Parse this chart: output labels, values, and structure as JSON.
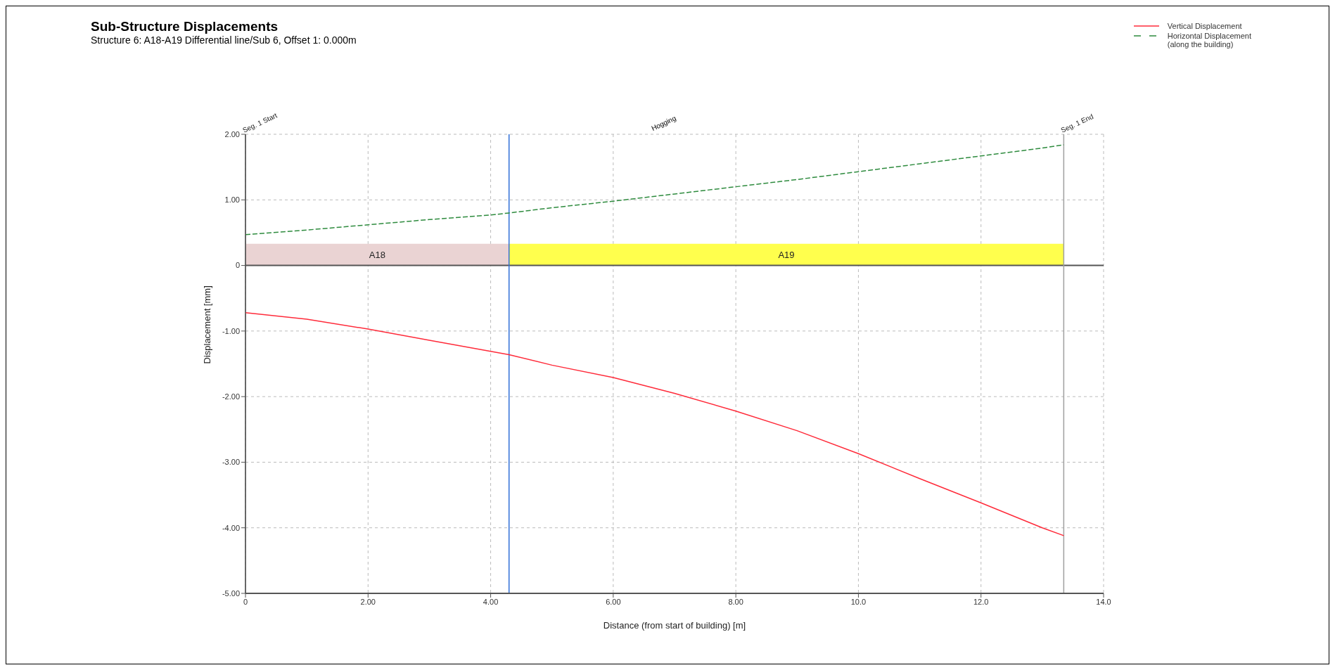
{
  "chart_data": {
    "type": "line",
    "title": "Sub-Structure Displacements",
    "subtitle": "Structure 6: A18-A19 Differential line/Sub 6, Offset 1: 0.000m",
    "xlabel": "Distance (from start of building) [m]",
    "ylabel": "Displacement [mm]",
    "xlim": [
      0,
      14
    ],
    "ylim": [
      -5,
      2
    ],
    "xticks": [
      0,
      {
        "value": 2,
        "label": "2.00"
      },
      {
        "value": 4,
        "label": "4.00"
      },
      {
        "value": 6,
        "label": "6.00"
      },
      {
        "value": 8,
        "label": "8.00"
      },
      {
        "value": 10,
        "label": "10.0"
      },
      {
        "value": 12,
        "label": "12.0"
      },
      {
        "value": 14,
        "label": "14.0"
      }
    ],
    "yticks": [
      {
        "value": 2,
        "label": "2.00"
      },
      {
        "value": 1,
        "label": "1.00"
      },
      0,
      {
        "value": -1,
        "label": "-1.00"
      },
      {
        "value": -2,
        "label": "-2.00"
      },
      {
        "value": -3,
        "label": "-3.00"
      },
      {
        "value": -4,
        "label": "-4.00"
      },
      {
        "value": -5,
        "label": "-5.00"
      }
    ],
    "x": [
      0,
      1,
      2,
      3,
      4,
      4.3,
      5,
      6,
      7,
      8,
      9,
      10,
      11,
      12,
      13,
      13.35
    ],
    "series": [
      {
        "name": "Vertical Displacement",
        "color": "#ff2b3a",
        "line_style": "solid",
        "values": [
          -0.72,
          -0.82,
          -0.97,
          -1.14,
          -1.31,
          -1.36,
          -1.52,
          -1.71,
          -1.95,
          -2.22,
          -2.52,
          -2.87,
          -3.25,
          -3.62,
          -4.0,
          -4.12
        ]
      },
      {
        "name": "Horizontal Displacement\n(along the building)",
        "color": "#2e8b3e",
        "line_style": "dashed",
        "values": [
          0.47,
          0.54,
          0.62,
          0.7,
          0.77,
          0.8,
          0.88,
          0.98,
          1.09,
          1.2,
          1.31,
          1.43,
          1.55,
          1.67,
          1.79,
          1.84
        ]
      }
    ],
    "bands": [
      {
        "axis": "x",
        "from": 0,
        "to": 4.3,
        "label": "A18",
        "color": "#ead3d3"
      },
      {
        "axis": "x",
        "from": 4.3,
        "to": 13.35,
        "label": "A19",
        "color": "#ffff4d"
      }
    ],
    "ref_lines": [
      {
        "axis": "x",
        "value": 0,
        "label": "Seg. 1 Start",
        "color": "#555555"
      },
      {
        "axis": "x",
        "value": 4.3,
        "label": null,
        "color": "#2f6fd8"
      },
      {
        "axis": "x",
        "value": 13.35,
        "label": "Seg. 1 End",
        "color": "#a0a0a0"
      }
    ],
    "annotations": [
      "Hogging"
    ],
    "grid": true,
    "legend": "top right",
    "marker": "none"
  }
}
